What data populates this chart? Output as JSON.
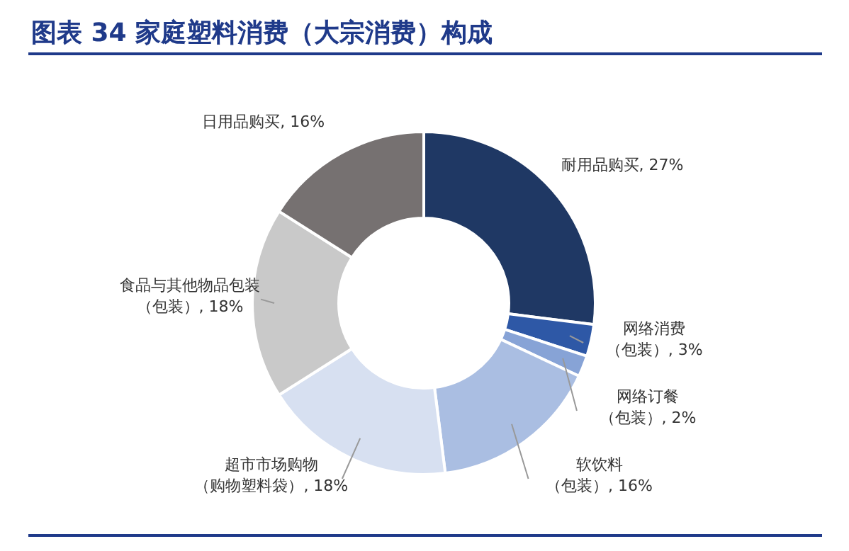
{
  "chart_data": {
    "type": "donut",
    "title": "图表 34 家庭塑料消费（大宗消费）构成",
    "categories": [
      "耐用品购买",
      "网络消费（包装）",
      "网络订餐（包装）",
      "软饮料（包装）",
      "超市市场购物（购物塑料袋）",
      "食品与其他物品包装（包装）",
      "日用品购买"
    ],
    "values": [
      27,
      3,
      2,
      16,
      18,
      18,
      16
    ],
    "value_labels": [
      "27%",
      "3%",
      "2%",
      "16%",
      "18%",
      "18%",
      "16%"
    ],
    "colors": [
      "#1f3864",
      "#2e58a6",
      "#87a3d6",
      "#aabee2",
      "#d7e0f1",
      "#c9c9c9",
      "#767171"
    ]
  }
}
